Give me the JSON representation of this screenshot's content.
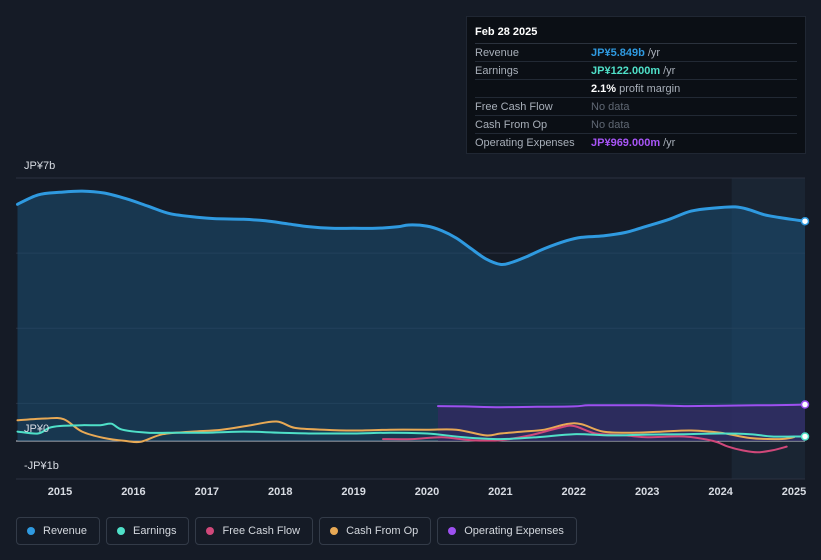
{
  "tooltip": {
    "date": "Feb 28 2025",
    "rows": [
      {
        "label": "Revenue",
        "value": "JP¥5.849b",
        "unit": "/yr",
        "color": "#2f9ae0"
      },
      {
        "label": "Earnings",
        "value": "JP¥122.000m",
        "unit": "/yr",
        "color": "#4fe0c8"
      },
      {
        "label": "",
        "value": "2.1%",
        "unit": "profit margin",
        "color": "#ffffff"
      },
      {
        "label": "Free Cash Flow",
        "value": "No data",
        "unit": "",
        "color": ""
      },
      {
        "label": "Cash From Op",
        "value": "No data",
        "unit": "",
        "color": ""
      },
      {
        "label": "Operating Expenses",
        "value": "JP¥969.000m",
        "unit": "/yr",
        "color": "#a855f7"
      }
    ]
  },
  "legend": [
    {
      "label": "Revenue",
      "color": "#2f9ae0"
    },
    {
      "label": "Earnings",
      "color": "#4fe0c8"
    },
    {
      "label": "Free Cash Flow",
      "color": "#d0487a"
    },
    {
      "label": "Cash From Op",
      "color": "#e8a955"
    },
    {
      "label": "Operating Expenses",
      "color": "#9d50f0"
    }
  ],
  "chart_data": {
    "type": "line",
    "title": "",
    "y_tick_labels": [
      "JP¥7b",
      "JP¥0",
      "-JP¥1b"
    ],
    "ylim": [
      -1,
      7
    ],
    "xlim": [
      2014.4,
      2025.15
    ],
    "x_tick_labels": [
      "2015",
      "2016",
      "2017",
      "2018",
      "2019",
      "2020",
      "2021",
      "2022",
      "2023",
      "2024",
      "2025"
    ],
    "x_ticks": [
      2015,
      2016,
      2017,
      2018,
      2019,
      2020,
      2021,
      2022,
      2023,
      2024,
      2025
    ],
    "shaded_from": 2024.15,
    "series": [
      {
        "name": "Revenue",
        "color": "#2f9ae0",
        "fill": true,
        "x": [
          2014.42,
          2014.7,
          2015.0,
          2015.3,
          2015.6,
          2015.9,
          2016.2,
          2016.5,
          2016.9,
          2017.1,
          2017.5,
          2017.8,
          2018.1,
          2018.4,
          2018.7,
          2019.0,
          2019.3,
          2019.6,
          2019.75,
          2020.0,
          2020.2,
          2020.4,
          2020.6,
          2020.8,
          2021.0,
          2021.15,
          2021.35,
          2021.6,
          2021.9,
          2022.1,
          2022.4,
          2022.7,
          2023.0,
          2023.3,
          2023.6,
          2023.9,
          2024.2,
          2024.4,
          2024.6,
          2024.8,
          2025.0,
          2025.15
        ],
        "y": [
          6.3,
          6.55,
          6.62,
          6.65,
          6.6,
          6.45,
          6.25,
          6.05,
          5.95,
          5.92,
          5.9,
          5.86,
          5.78,
          5.7,
          5.66,
          5.66,
          5.66,
          5.7,
          5.75,
          5.72,
          5.6,
          5.4,
          5.12,
          4.85,
          4.7,
          4.75,
          4.9,
          5.12,
          5.33,
          5.42,
          5.46,
          5.55,
          5.72,
          5.9,
          6.12,
          6.2,
          6.23,
          6.15,
          6.02,
          5.95,
          5.89,
          5.85
        ]
      },
      {
        "name": "Earnings",
        "color": "#4fe0c8",
        "fill": false,
        "x": [
          2014.42,
          2014.7,
          2014.85,
          2015.0,
          2015.3,
          2015.55,
          2015.7,
          2015.85,
          2016.2,
          2016.6,
          2017.0,
          2017.5,
          2018.0,
          2018.5,
          2019.0,
          2019.5,
          2020.0,
          2020.5,
          2021.0,
          2021.5,
          2022.0,
          2022.5,
          2023.0,
          2023.5,
          2024.0,
          2024.4,
          2024.7,
          2025.0,
          2025.15
        ],
        "y": [
          0.25,
          0.2,
          0.35,
          0.4,
          0.42,
          0.42,
          0.46,
          0.3,
          0.22,
          0.22,
          0.22,
          0.25,
          0.22,
          0.2,
          0.2,
          0.22,
          0.2,
          0.1,
          0.05,
          0.1,
          0.18,
          0.15,
          0.17,
          0.18,
          0.2,
          0.18,
          0.12,
          0.12,
          0.12
        ]
      },
      {
        "name": "Free Cash Flow",
        "color": "#d0487a",
        "fill": false,
        "x": [
          2019.4,
          2019.8,
          2020.2,
          2020.6,
          2021.0,
          2021.4,
          2021.8,
          2022.0,
          2022.3,
          2022.7,
          2023.0,
          2023.5,
          2023.9,
          2024.1,
          2024.3,
          2024.5,
          2024.7,
          2024.9
        ],
        "y": [
          0.05,
          0.05,
          0.1,
          0.02,
          0.02,
          0.15,
          0.35,
          0.4,
          0.2,
          0.15,
          0.1,
          0.12,
          0.0,
          -0.15,
          -0.25,
          -0.3,
          -0.25,
          -0.15
        ]
      },
      {
        "name": "Cash From Op",
        "color": "#e8a955",
        "fill": false,
        "x": [
          2014.42,
          2014.8,
          2015.05,
          2015.3,
          2015.6,
          2015.9,
          2016.1,
          2016.4,
          2016.8,
          2017.2,
          2017.6,
          2017.95,
          2018.2,
          2018.6,
          2019.0,
          2019.5,
          2020.0,
          2020.4,
          2020.8,
          2021.0,
          2021.3,
          2021.6,
          2021.9,
          2022.1,
          2022.4,
          2022.8,
          2023.2,
          2023.6,
          2024.0,
          2024.4,
          2024.8,
          2025.0
        ],
        "y": [
          0.55,
          0.6,
          0.58,
          0.25,
          0.08,
          0.0,
          -0.02,
          0.18,
          0.25,
          0.3,
          0.42,
          0.52,
          0.35,
          0.3,
          0.28,
          0.3,
          0.3,
          0.3,
          0.15,
          0.2,
          0.25,
          0.3,
          0.45,
          0.45,
          0.25,
          0.22,
          0.25,
          0.28,
          0.22,
          0.08,
          0.05,
          0.1
        ]
      },
      {
        "name": "Operating Expenses",
        "color": "#9d50f0",
        "fill": true,
        "x": [
          2020.15,
          2020.5,
          2021.0,
          2021.5,
          2022.0,
          2022.2,
          2022.6,
          2023.0,
          2023.5,
          2024.0,
          2024.5,
          2025.0,
          2025.15
        ],
        "y": [
          0.93,
          0.92,
          0.9,
          0.91,
          0.92,
          0.95,
          0.95,
          0.95,
          0.93,
          0.94,
          0.95,
          0.96,
          0.97
        ]
      }
    ]
  }
}
